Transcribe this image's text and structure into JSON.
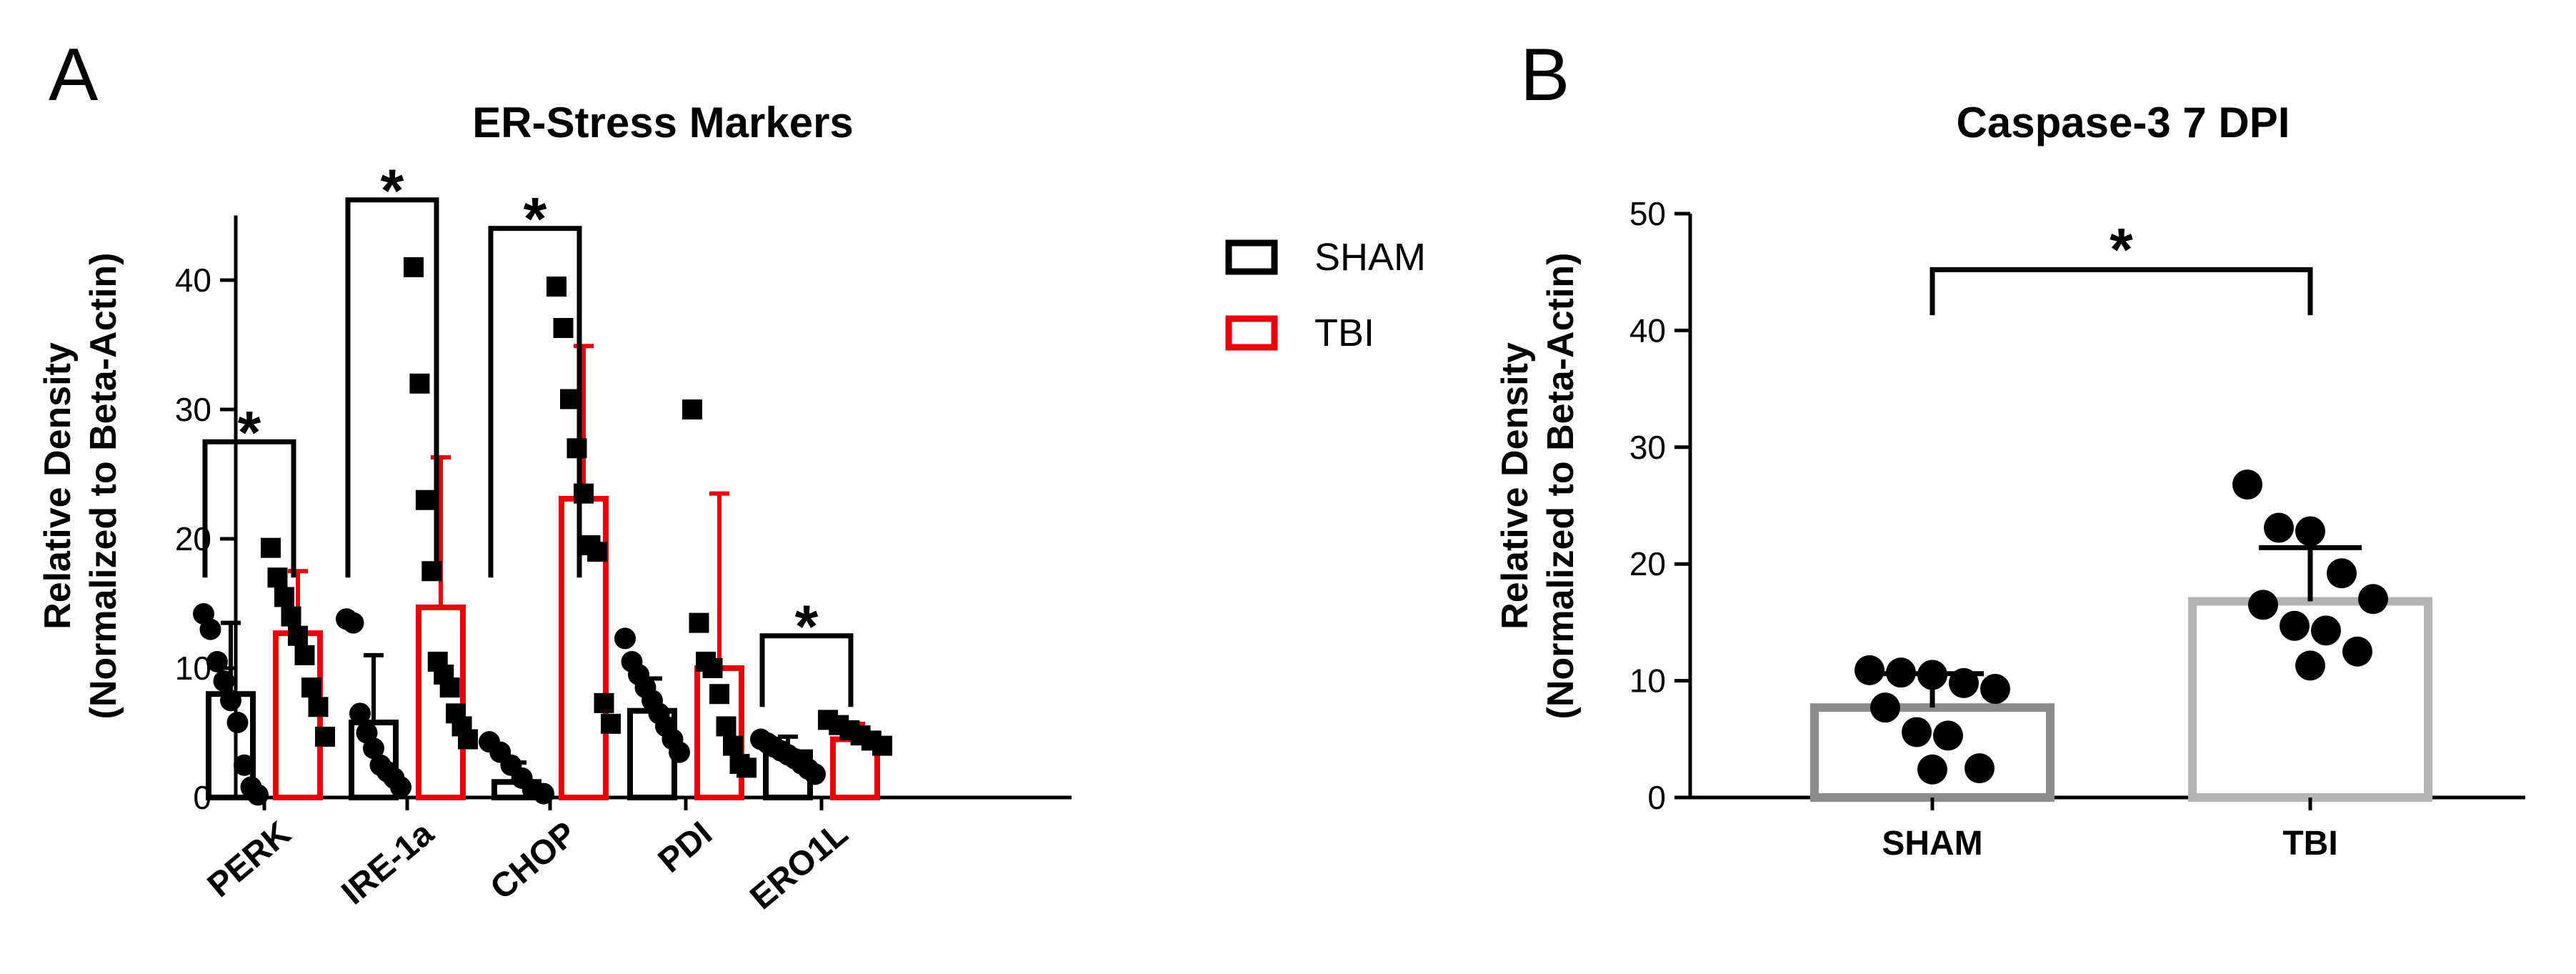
{
  "panels": {
    "a": {
      "letter": "A",
      "title": "ER-Stress Markers",
      "ylabel_line1": "Relative Density",
      "ylabel_line2": "(Normalized to Beta-Actin)",
      "legend": [
        {
          "label": "SHAM",
          "color": "#000000"
        },
        {
          "label": "TBI",
          "color": "#e8000b"
        }
      ],
      "significance": "*"
    },
    "b": {
      "letter": "B",
      "title": "Caspase-3 7 DPI",
      "ylabel_line1": "Relative Density",
      "ylabel_line2": "(Normalized to Beta-Actin)",
      "significance": "*"
    }
  },
  "chart_data": [
    {
      "type": "bar",
      "title": "ER-Stress Markers",
      "ylabel": "Relative Density (Normalized to Beta-Actin)",
      "xlabel": "",
      "ylim": [
        0,
        45
      ],
      "yticks": [
        0,
        10,
        20,
        30,
        40
      ],
      "categories": [
        "PERK",
        "IRE-1a",
        "CHOP",
        "PDI",
        "ERO1L"
      ],
      "series": [
        {
          "name": "SHAM",
          "color": "#000000",
          "marker": "circle",
          "values": [
            8.0,
            5.8,
            1.2,
            6.7,
            3.5
          ],
          "sd": [
            5.5,
            5.2,
            1.5,
            2.5,
            1.2
          ],
          "points": [
            [
              14.2,
              13.0,
              10.5,
              9.0,
              7.5,
              5.8,
              2.5,
              0.8,
              0.2
            ],
            [
              13.8,
              13.5,
              6.5,
              5.0,
              3.8,
              2.5,
              2.0,
              1.5,
              0.8
            ],
            [
              4.3,
              3.5,
              2.5,
              1.5,
              0.6,
              0.3
            ],
            [
              12.3,
              10.5,
              9.5,
              8.5,
              7.5,
              6.5,
              5.5,
              4.5,
              3.5
            ],
            [
              4.5,
              4.2,
              3.9,
              3.6,
              3.3,
              3.0,
              2.6,
              2.2,
              1.8
            ]
          ]
        },
        {
          "name": "TBI",
          "color": "#e8000b",
          "marker": "square",
          "values": [
            12.7,
            14.7,
            23.1,
            10.0,
            4.5
          ],
          "sd": [
            4.8,
            11.6,
            11.8,
            13.5,
            1.2
          ],
          "points": [
            [
              19.3,
              17.0,
              15.5,
              14.0,
              12.5,
              11.0,
              8.5,
              7.0,
              4.7
            ],
            [
              41.0,
              32.0,
              23.0,
              17.5,
              10.5,
              9.5,
              8.5,
              6.5,
              5.5,
              4.5
            ],
            [
              39.5,
              36.3,
              30.8,
              27.0,
              23.5,
              19.5,
              19.0,
              7.3,
              5.7
            ],
            [
              30.0,
              13.5,
              10.5,
              10.0,
              8.0,
              5.5,
              4.0,
              2.6,
              2.3
            ],
            [
              6.0,
              5.6,
              5.2,
              4.8,
              4.4,
              4.0
            ]
          ]
        }
      ],
      "significance": [
        {
          "category": "PERK",
          "label": "*"
        },
        {
          "category": "IRE-1a",
          "label": "*"
        },
        {
          "category": "CHOP",
          "label": "*"
        },
        {
          "category": "ERO1L",
          "label": "*"
        }
      ]
    },
    {
      "type": "bar",
      "title": "Caspase-3 7 DPI",
      "ylabel": "Relative Density (Normalized to Beta-Actin)",
      "xlabel": "",
      "ylim": [
        0,
        50
      ],
      "yticks": [
        0,
        10,
        20,
        30,
        40,
        50
      ],
      "categories": [
        "SHAM",
        "TBI"
      ],
      "values": [
        7.7,
        16.8
      ],
      "sem": [
        2.9,
        4.6
      ],
      "bar_colors": [
        "#8c8c8c",
        "#b4b4b4"
      ],
      "points": [
        [
          10.9,
          10.7,
          10.5,
          9.8,
          9.3,
          7.7,
          5.6,
          5.3,
          2.5,
          2.4
        ],
        [
          26.8,
          23.1,
          22.8,
          19.2,
          17.0,
          16.5,
          14.7,
          14.3,
          12.5,
          11.3
        ]
      ],
      "significance": [
        {
          "between": [
            "SHAM",
            "TBI"
          ],
          "label": "*"
        }
      ]
    }
  ]
}
